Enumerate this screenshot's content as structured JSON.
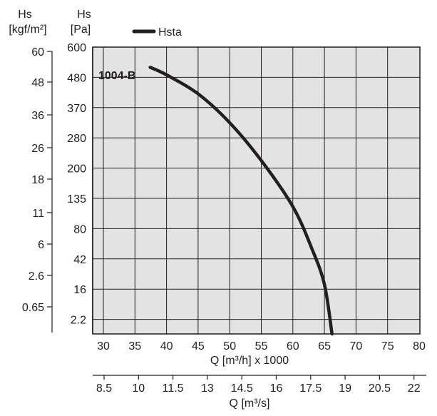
{
  "chart_data": {
    "type": "line",
    "title": "",
    "curve_label": "1004-B",
    "legend": {
      "entries": [
        {
          "name": "Hsta",
          "color": "#231f20"
        }
      ],
      "placement": "top"
    },
    "xlabel_primary": "Q [m³/h] x 1000",
    "xlabel_secondary": "Q [m³/s]",
    "ylabel_pa": {
      "line1": "Hs",
      "line2": "[Pa]"
    },
    "ylabel_kgf": {
      "line1": "Hs",
      "line2": "[kgf/m²]"
    },
    "x_ticks": [
      "30",
      "35",
      "40",
      "45",
      "50",
      "55",
      "60",
      "65",
      "70",
      "75",
      "80"
    ],
    "x2_ticks": [
      "8.5",
      "10",
      "11.5",
      "13",
      "14.5",
      "16",
      "17.5",
      "19",
      "20.5",
      "22"
    ],
    "y_pa_ticks": [
      "600",
      "480",
      "370",
      "280",
      "200",
      "135",
      "80",
      "42",
      "16",
      "2.2"
    ],
    "y_kgf_ticks": [
      "60",
      "48",
      "36",
      "26",
      "18",
      "11",
      "6",
      "2.6",
      "0.65"
    ],
    "xlim": [
      29,
      80
    ],
    "scale_note": "Pa axis is non-linear; tick labels are equally spaced",
    "grid": true,
    "series": [
      {
        "name": "Hsta",
        "color": "#231f20",
        "points": [
          {
            "x": 37.4,
            "y": 520
          },
          {
            "x": 40,
            "y": 490
          },
          {
            "x": 45,
            "y": 420
          },
          {
            "x": 50,
            "y": 325
          },
          {
            "x": 55,
            "y": 220
          },
          {
            "x": 60,
            "y": 120
          },
          {
            "x": 63,
            "y": 55
          },
          {
            "x": 65,
            "y": 20
          },
          {
            "x": 66.2,
            "y": 0
          }
        ]
      }
    ]
  }
}
